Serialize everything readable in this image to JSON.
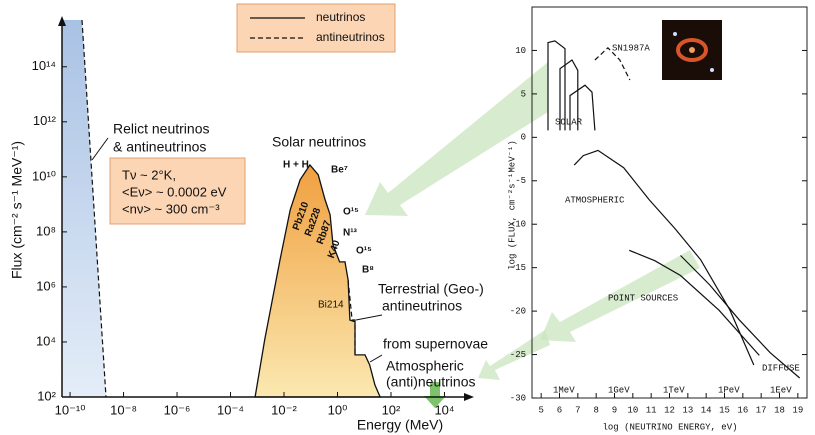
{
  "chart_data": [
    {
      "type": "line",
      "xlabel": "Energy (MeV)",
      "ylabel": "Flux (cm⁻² s⁻¹ MeV⁻¹)",
      "xlog": true,
      "ylog": true,
      "xlim": [
        5e-11,
        90000.0
      ],
      "ylim": [
        100,
        5000000000000000.0
      ],
      "xticks": [
        {
          "value": 1e-10,
          "label": "10⁻¹⁰"
        },
        {
          "value": 1e-08,
          "label": "10⁻⁸"
        },
        {
          "value": 1e-06,
          "label": "10⁻⁶"
        },
        {
          "value": 0.0001,
          "label": "10⁻⁴"
        },
        {
          "value": 0.01,
          "label": "10⁻²"
        },
        {
          "value": 1,
          "label": "10⁰"
        },
        {
          "value": 100,
          "label": "10²"
        },
        {
          "value": 10000,
          "label": "10⁴"
        }
      ],
      "yticks": [
        {
          "value": 100,
          "label": "10²"
        },
        {
          "value": 10000,
          "label": "10⁴"
        },
        {
          "value": 1000000,
          "label": "10⁶"
        },
        {
          "value": 100000000,
          "label": "10⁸"
        },
        {
          "value": 10000000000,
          "label": "10¹⁰"
        },
        {
          "value": 1000000000000,
          "label": "10¹²"
        },
        {
          "value": 100000000000000,
          "label": "10¹⁴"
        }
      ],
      "legend": [
        "neutrinos",
        "antineutrinos"
      ],
      "box": [
        "Tν ~ 2°K,",
        "<Eν> ~ 0.0002 eV",
        "<nν> ~ 300 cm⁻³"
      ],
      "series": [
        {
          "color": "#b9cfe9",
          "fill": "left",
          "x": [
            2.8e-10,
            2.2e-09
          ],
          "values": [
            5000000000000000.0,
            100
          ]
        },
        {
          "color": "#f5b060",
          "fill": "bottom",
          "x": [
            0.00083,
            0.0019,
            0.0071,
            0.017,
            0.04,
            0.093,
            0.19,
            0.34,
            0.53,
            0.68,
            1.2,
            1.9,
            2.5,
            2.9,
            4.5,
            4.5,
            10.7,
            16,
            25,
            39
          ],
          "values": [
            100,
            12000,
            9600000,
            630000000,
            7800000000,
            27000000000,
            12000000000,
            1500000000,
            420000000,
            34000000,
            8100000,
            8100000,
            1800000,
            63000,
            54000,
            3400,
            3400,
            1450,
            275,
            100
          ]
        },
        {
          "color": "#111111",
          "dash": true,
          "x": [
            2.5,
            3.5,
            4.5,
            4.5
          ],
          "values": [
            1800000,
            63000,
            63000,
            3400
          ]
        }
      ],
      "annotations": [
        "Relict neutrinos",
        "& antineutrinos",
        "Solar neutrinos",
        "H + H",
        "Be⁷",
        "O¹⁵",
        "N¹³",
        "O¹⁵",
        "B⁸",
        "Pb210",
        "Ra228",
        "Rb87",
        "K40",
        "Bi214",
        "Terrestrial (Geo-)",
        "antineutrinos",
        "from supernovae",
        "Atmospheric",
        "(anti)neutrinos"
      ]
    },
    {
      "type": "line",
      "xlabel": "log (NEUTRINO ENERGY, eV)",
      "ylabel": "log (FLUX, cm⁻²s⁻¹MeV⁻¹)",
      "xlim": [
        4.5,
        19.5
      ],
      "ylim": [
        -30,
        15
      ],
      "xticks": [
        5,
        6,
        7,
        8,
        9,
        10,
        11,
        12,
        13,
        14,
        15,
        16,
        17,
        18,
        19
      ],
      "yticks": [
        10,
        5,
        0,
        -5,
        -10,
        -15,
        -20,
        -25,
        -30
      ],
      "series": [
        {
          "color": "#111111",
          "x": [
            5.37,
            5.37,
            5.75,
            6.3,
            6.3
          ],
          "values": [
            0.8,
            10.9,
            11.1,
            10.2,
            0.8
          ]
        },
        {
          "color": "#111111",
          "x": [
            6.03,
            6.03,
            6.68,
            7.0,
            7.0
          ],
          "values": [
            0.8,
            7.9,
            8.9,
            7.7,
            0.8
          ]
        },
        {
          "color": "#111111",
          "x": [
            6.57,
            6.57,
            7.39,
            7.77,
            7.93
          ],
          "values": [
            0.8,
            4.8,
            6.0,
            5.2,
            0.8
          ]
        },
        {
          "color": "#111111",
          "dash": true,
          "x": [
            7.93,
            8.64,
            9.29,
            9.84
          ],
          "values": [
            8.9,
            10.3,
            8.9,
            6.6
          ]
        },
        {
          "color": "#111111",
          "x": [
            6.8,
            7.3,
            8.1,
            9.5,
            10.9,
            12.3,
            13.7,
            15.3,
            16.6
          ],
          "values": [
            -3.2,
            -2.1,
            -1.5,
            -3.5,
            -7.2,
            -10.5,
            -14.1,
            -19.9,
            -26.2
          ]
        },
        {
          "color": "#111111",
          "x": [
            9.8,
            11.2,
            12.6,
            14.7,
            16.9
          ],
          "values": [
            -13.0,
            -14.2,
            -15.9,
            -19.9,
            -25.1
          ]
        },
        {
          "color": "#111111",
          "x": [
            12.6,
            14.2,
            15.8,
            17.5,
            19.1
          ],
          "values": [
            -13.6,
            -17.0,
            -21.0,
            -24.8,
            -27.7
          ]
        }
      ],
      "annotations": [
        "SN1987A",
        "SOLAR",
        "ATMOSPHERIC",
        "POINT SOURCES",
        "DIFFUSE",
        "1MeV",
        "1GeV",
        "1TeV",
        "1PeV",
        "1EeV"
      ]
    }
  ]
}
